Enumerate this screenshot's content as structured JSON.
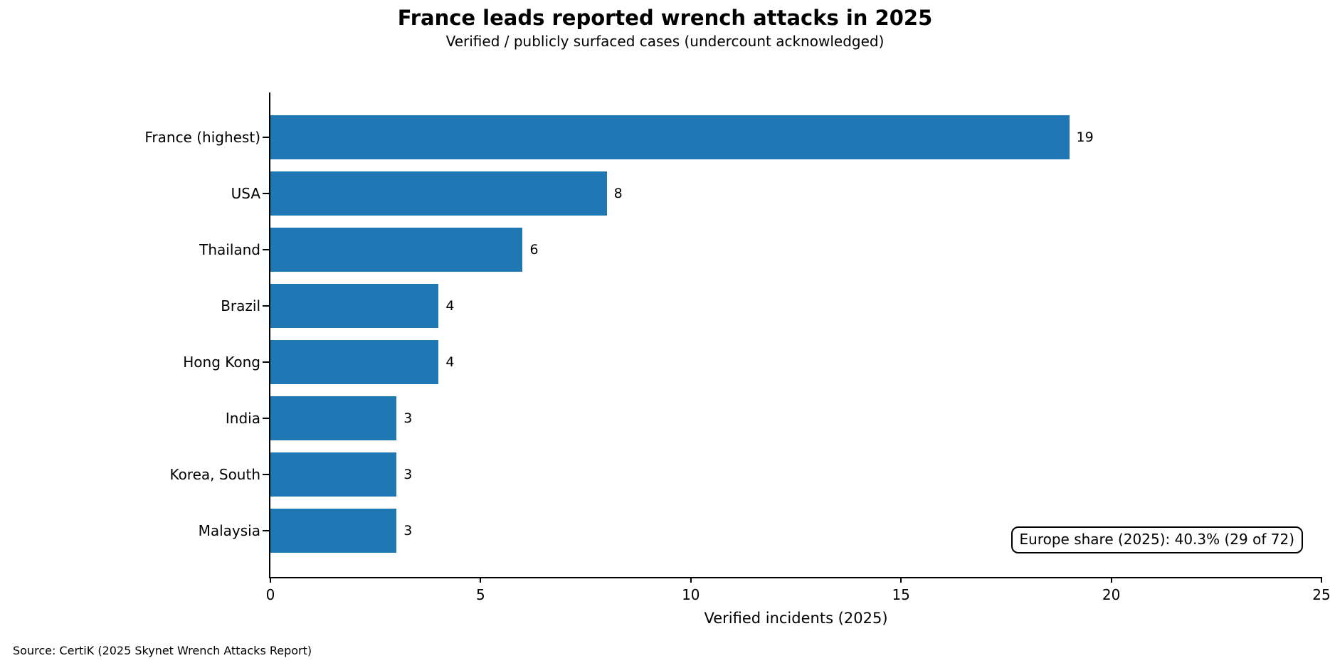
{
  "chart_data": {
    "type": "bar",
    "orientation": "horizontal",
    "title": "France leads reported wrench attacks in 2025",
    "subtitle": "Verified / publicly surfaced cases (undercount acknowledged)",
    "categories": [
      "France (highest)",
      "USA",
      "Thailand",
      "Brazil",
      "Hong Kong",
      "India",
      "Korea, South",
      "Malaysia"
    ],
    "values": [
      19,
      8,
      6,
      4,
      4,
      3,
      3,
      3
    ],
    "xlabel": "Verified incidents (2025)",
    "ylabel": "",
    "xlim": [
      0,
      25
    ],
    "xticks": [
      0,
      5,
      10,
      15,
      20,
      25
    ],
    "bar_color": "#1f77b4",
    "axis_color": "#000000",
    "grid": false,
    "legend": "none",
    "annotation": "Europe share (2025): 40.3% (29 of 72)"
  },
  "source_note": "Source: CertiK (2025 Skynet Wrench Attacks Report)"
}
